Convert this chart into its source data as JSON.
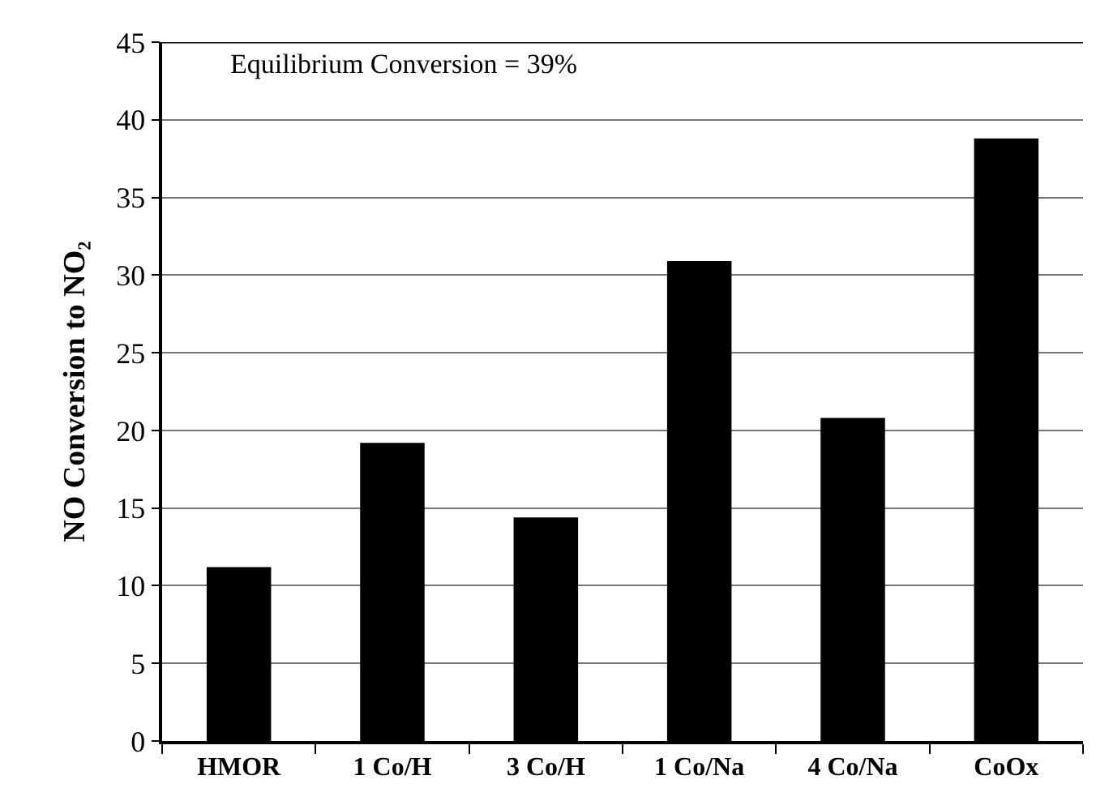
{
  "chart_data": {
    "type": "bar",
    "ylabel": "NO Conversion to NO₂",
    "annotations": [
      "Equilibrium Conversion = 39%"
    ],
    "categories": [
      "HMOR",
      "1 Co/H",
      "3 Co/H",
      "1 Co/Na",
      "4 Co/Na",
      "CoOx"
    ],
    "values": [
      11.2,
      19.2,
      14.4,
      30.9,
      20.8,
      38.8
    ],
    "color": "#000000",
    "ylim": [
      0,
      45
    ],
    "yticks": [
      0,
      5,
      10,
      15,
      20,
      25,
      30,
      35,
      40,
      45
    ],
    "grid": "y"
  }
}
